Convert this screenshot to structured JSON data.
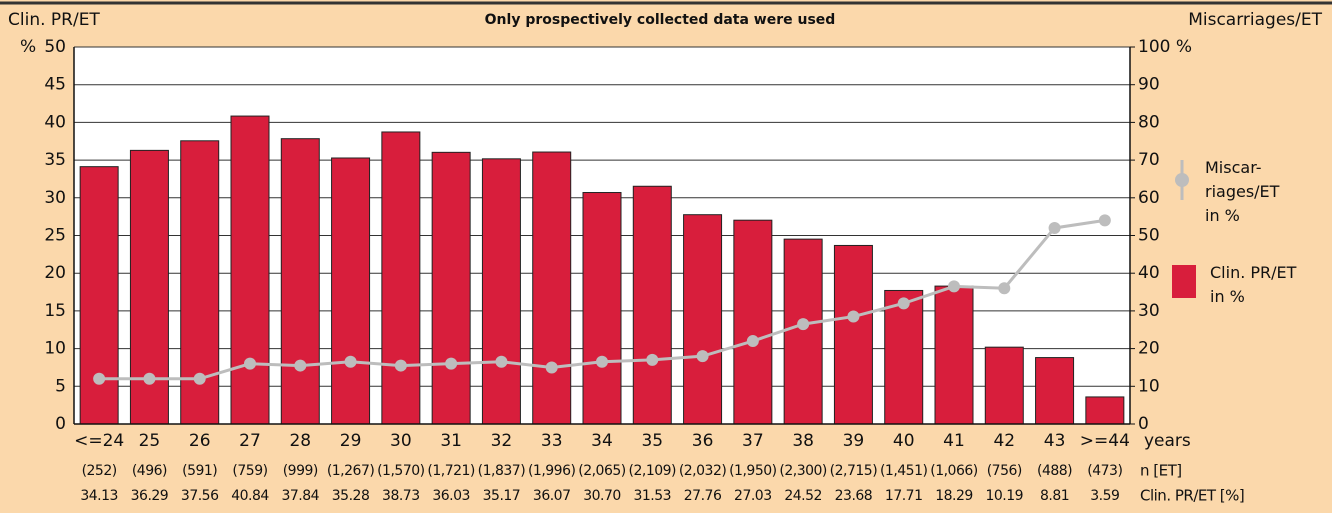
{
  "chart_data": {
    "type": "bar-line",
    "title": "Only prospectively collected data were used",
    "y_label": "Clin. PR/ET",
    "y_unit": "%",
    "y2_label": "Miscarriages/ET",
    "x_label": "years",
    "n_row_label": "n [ET]",
    "value_row_label": "Clin. PR/ET [%]",
    "categories": [
      "<=24",
      "25",
      "26",
      "27",
      "28",
      "29",
      "30",
      "31",
      "32",
      "33",
      "34",
      "35",
      "36",
      "37",
      "38",
      "39",
      "40",
      "41",
      "42",
      "43",
      ">=44"
    ],
    "n_et": [
      "(252)",
      "(496)",
      "(591)",
      "(759)",
      "(999)",
      "(1,267)",
      "(1,570)",
      "(1,721)",
      "(1,837)",
      "(1,996)",
      "(2,065)",
      "(2,109)",
      "(2,032)",
      "(1,950)",
      "(2,300)",
      "(2,715)",
      "(1,451)",
      "(1,066)",
      "(756)",
      "(488)",
      "(473)"
    ],
    "series": [
      {
        "name": "Clin. PR/ET\nin %",
        "type": "bar",
        "color": "#d81e3c",
        "values": [
          34.13,
          36.29,
          37.56,
          40.84,
          37.84,
          35.28,
          38.73,
          36.03,
          35.17,
          36.07,
          30.7,
          31.53,
          27.76,
          27.03,
          24.52,
          23.68,
          17.71,
          18.29,
          10.19,
          8.81,
          3.59
        ],
        "value_labels": [
          "34.13",
          "36.29",
          "37.56",
          "40.84",
          "37.84",
          "35.28",
          "38.73",
          "36.03",
          "35.17",
          "36.07",
          "30.70",
          "31.53",
          "27.76",
          "27.03",
          "24.52",
          "23.68",
          "17.71",
          "18.29",
          "10.19",
          "8.81",
          "3.59"
        ]
      },
      {
        "name": "Miscar-\nriages/ET\nin %",
        "type": "line",
        "axis": "y2",
        "color": "#bdbdbd",
        "values": [
          12,
          12,
          12,
          16,
          15.5,
          16.5,
          15.5,
          16,
          16.5,
          15,
          16.5,
          17,
          18,
          22,
          26.5,
          28.5,
          32,
          36.5,
          36,
          52,
          54
        ]
      }
    ],
    "ylim": [
      0,
      50
    ],
    "yticks": [
      0,
      5,
      10,
      15,
      20,
      25,
      30,
      35,
      40,
      45,
      50
    ],
    "y2lim": [
      0,
      100
    ],
    "y2ticks": [
      0,
      10,
      20,
      30,
      40,
      50,
      60,
      70,
      80,
      90,
      {
        "value": 100,
        "label": "100 %"
      }
    ],
    "grid": true
  }
}
